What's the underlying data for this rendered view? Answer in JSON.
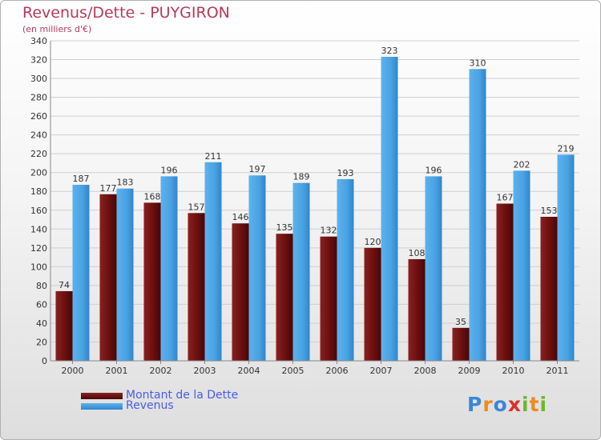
{
  "title": "Revenus/Dette - PUYGIRON",
  "subtitle": "(en milliers d'€)",
  "logo_text": "Proxiti",
  "colors": {
    "dette": "#7a1414",
    "revenus": "#4ea6e6",
    "title": "#b53a5a",
    "legend_text": "#4a5ae8"
  },
  "chart_data": {
    "type": "bar",
    "categories": [
      "2000",
      "2001",
      "2002",
      "2003",
      "2004",
      "2005",
      "2006",
      "2007",
      "2008",
      "2009",
      "2010",
      "2011"
    ],
    "series": [
      {
        "name": "Montant de la Dette",
        "values": [
          74,
          177,
          168,
          157,
          146,
          135,
          132,
          120,
          108,
          35,
          167,
          153
        ]
      },
      {
        "name": "Revenus",
        "values": [
          187,
          183,
          196,
          211,
          197,
          189,
          193,
          323,
          196,
          310,
          202,
          219
        ]
      }
    ],
    "ylim": [
      0,
      340
    ],
    "yticks": [
      0,
      20,
      40,
      60,
      80,
      100,
      120,
      140,
      160,
      180,
      200,
      220,
      240,
      260,
      280,
      300,
      320,
      340
    ],
    "grid": true,
    "legend_position": "bottom-left"
  },
  "legend": [
    {
      "label": "Montant de la Dette"
    },
    {
      "label": "Revenus"
    }
  ]
}
